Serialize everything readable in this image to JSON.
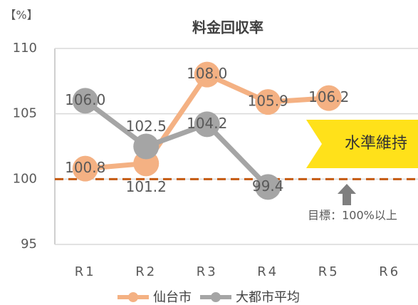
{
  "chart_data": {
    "type": "line",
    "title": "料金回収率",
    "y_unit": "【%】",
    "categories": [
      "R1",
      "R2",
      "R3",
      "R4",
      "R5",
      "R6"
    ],
    "series": [
      {
        "name": "仙台市",
        "color": "#f4b183",
        "values": [
          100.8,
          101.2,
          108.0,
          105.9,
          106.2,
          null
        ],
        "value_labels": [
          "100.8",
          "101.2",
          "108.0",
          "105.9",
          "106.2",
          null
        ]
      },
      {
        "name": "大都市平均",
        "color": "#a5a5a5",
        "values": [
          106.0,
          102.5,
          104.2,
          99.4,
          null,
          null
        ],
        "value_labels": [
          "106.0",
          "102.5",
          "104.2",
          "99.4",
          null,
          null
        ]
      }
    ],
    "ylim": [
      95,
      110
    ],
    "yticks": [
      95,
      100,
      105,
      110
    ],
    "grid": true,
    "legend": "bottom",
    "target_line": {
      "value": 100,
      "color": "#c55a11"
    },
    "annotations": {
      "target": "目標：100%以上",
      "banner": "水準維持"
    }
  }
}
